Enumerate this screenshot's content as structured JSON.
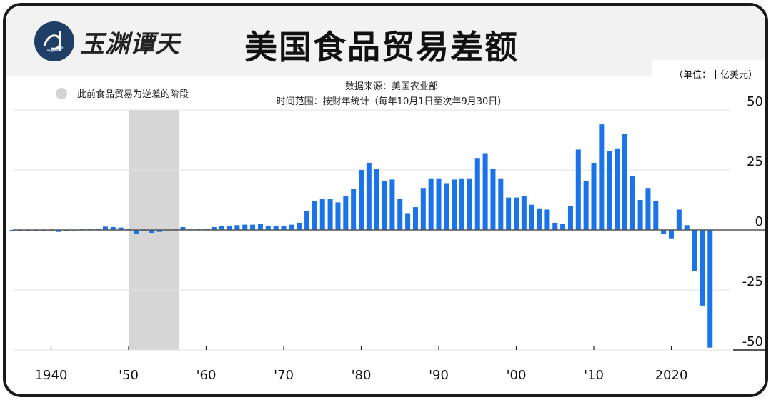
{
  "header": {
    "logo_text": "玉渊谭天",
    "title": "美国食品贸易差额"
  },
  "unit_label": "（单位：十亿美元）",
  "source_line1": "数据来源：美国农业部",
  "source_line2": "时间范围：按财年统计（每年10月1日至次年9月30日）",
  "legend": {
    "label": "此前食品贸易为逆差的阶段",
    "color": "#d4d4d4"
  },
  "colors": {
    "bar": "#1a73e8",
    "shade": "#d6d6d6",
    "grid": "#e2e2e2",
    "zero": "#555555"
  },
  "chart_data": {
    "type": "bar",
    "ylim": [
      -50,
      50
    ],
    "yticks": [
      50,
      25,
      0,
      -25,
      -50
    ],
    "xtick_labels": [
      {
        "year": 1940,
        "label": "1940"
      },
      {
        "year": 1950,
        "label": "'50"
      },
      {
        "year": 1960,
        "label": "'60"
      },
      {
        "year": 1970,
        "label": "'70"
      },
      {
        "year": 1980,
        "label": "'80"
      },
      {
        "year": 1990,
        "label": "'90"
      },
      {
        "year": 2000,
        "label": "'00"
      },
      {
        "year": 2010,
        "label": "'10"
      },
      {
        "year": 2020,
        "label": "2020"
      }
    ],
    "shaded_periods": [
      [
        1950,
        1956.5
      ]
    ],
    "series": [
      {
        "years": [
          1935,
          1936,
          1937,
          1938,
          1939,
          1940,
          1941,
          1942,
          1943,
          1944,
          1945,
          1946,
          1947,
          1948,
          1949,
          1950,
          1951,
          1952,
          1953,
          1954,
          1955,
          1956,
          1957,
          1958,
          1959,
          1960,
          1961,
          1962,
          1963,
          1964,
          1965,
          1966,
          1967,
          1968,
          1969,
          1970,
          1971,
          1972,
          1973,
          1974,
          1975,
          1976,
          1977,
          1978,
          1979,
          1980,
          1981,
          1982,
          1983,
          1984,
          1985,
          1986,
          1987,
          1988,
          1989,
          1990,
          1991,
          1992,
          1993,
          1994,
          1995,
          1996,
          1997,
          1998,
          1999,
          2000,
          2001,
          2002,
          2003,
          2004,
          2005,
          2006,
          2007,
          2008,
          2009,
          2010,
          2011,
          2012,
          2013,
          2014,
          2015,
          2016,
          2017,
          2018,
          2019,
          2020,
          2021,
          2022,
          2023,
          2024,
          2025
        ],
        "values": [
          -0.3,
          -0.4,
          -0.6,
          -0.3,
          -0.4,
          -0.4,
          -0.8,
          -0.4,
          -0.2,
          0.5,
          0.6,
          0.6,
          1.4,
          1.2,
          1.0,
          0.5,
          -1.5,
          -0.5,
          -1.2,
          -0.8,
          -0.2,
          0.6,
          1.2,
          0.4,
          0.3,
          0.5,
          1.2,
          1.5,
          1.5,
          2.0,
          2.2,
          2.2,
          2.5,
          1.5,
          1.5,
          1.5,
          2.2,
          3.0,
          8.0,
          12.0,
          13.0,
          13.0,
          11.5,
          14.0,
          17.0,
          25.0,
          28.0,
          25.5,
          20.5,
          21.0,
          13.0,
          7.0,
          9.5,
          17.5,
          21.5,
          21.5,
          19.5,
          21.0,
          21.5,
          21.5,
          30.0,
          32.0,
          25.5,
          21.5,
          13.5,
          13.5,
          14.0,
          10.5,
          9.0,
          8.5,
          3.0,
          2.5,
          10.0,
          33.5,
          20.5,
          28.0,
          44.0,
          33.0,
          34.0,
          40.0,
          22.5,
          12.5,
          17.5,
          12.0,
          -1.5,
          -3.5,
          8.5,
          2.0,
          -17.0,
          -31.5,
          -49.0
        ]
      }
    ]
  }
}
